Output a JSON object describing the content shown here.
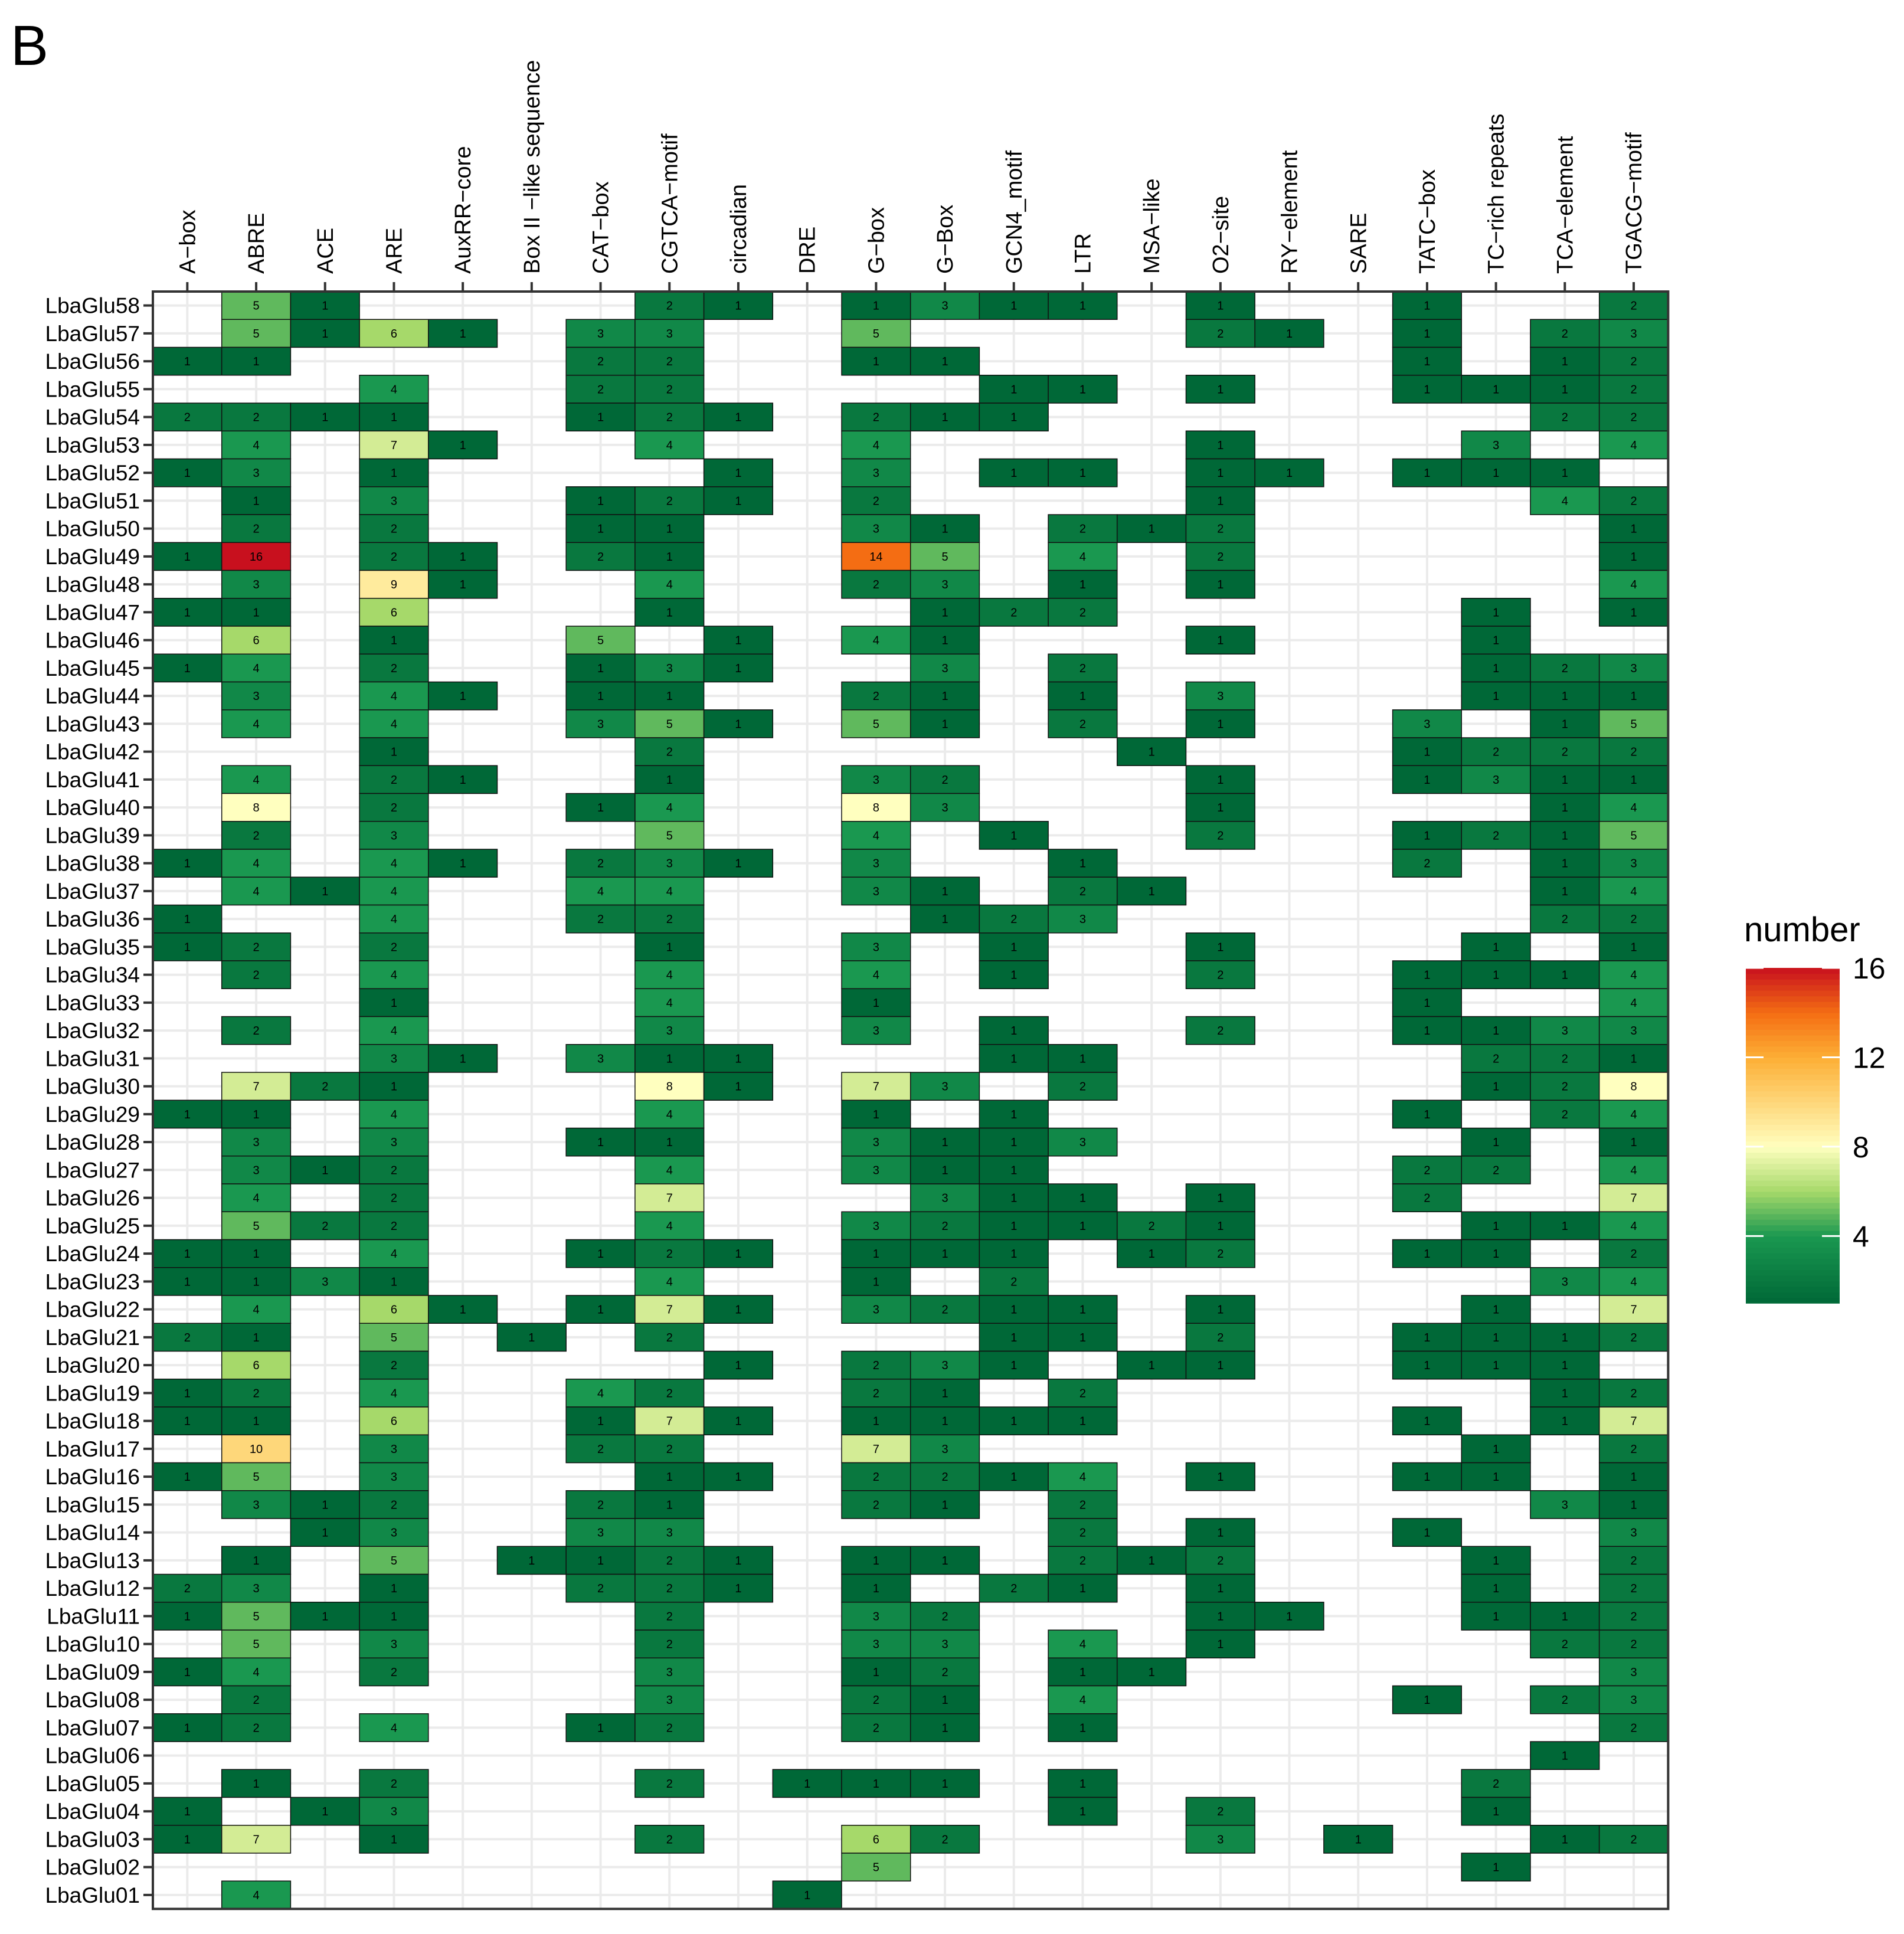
{
  "panel_label": "B",
  "chart_data": {
    "type": "heatmap",
    "title": "",
    "xlabel": "",
    "ylabel": "",
    "x_position": "top",
    "grid": true,
    "columns": [
      "A−box",
      "ABRE",
      "ACE",
      "ARE",
      "AuxRR−core",
      "Box II −like sequence",
      "CAT−box",
      "CGTCA−motif",
      "circadian",
      "DRE",
      "G−box",
      "G−Box",
      "GCN4_motif",
      "LTR",
      "MSA−like",
      "O2−site",
      "RY−element",
      "SARE",
      "TATC−box",
      "TC−rich repeats",
      "TCA−element",
      "TGACG−motif"
    ],
    "rows": [
      "LbaGlu58",
      "LbaGlu57",
      "LbaGlu56",
      "LbaGlu55",
      "LbaGlu54",
      "LbaGlu53",
      "LbaGlu52",
      "LbaGlu51",
      "LbaGlu50",
      "LbaGlu49",
      "LbaGlu48",
      "LbaGlu47",
      "LbaGlu46",
      "LbaGlu45",
      "LbaGlu44",
      "LbaGlu43",
      "LbaGlu42",
      "LbaGlu41",
      "LbaGlu40",
      "LbaGlu39",
      "LbaGlu38",
      "LbaGlu37",
      "LbaGlu36",
      "LbaGlu35",
      "LbaGlu34",
      "LbaGlu33",
      "LbaGlu32",
      "LbaGlu31",
      "LbaGlu30",
      "LbaGlu29",
      "LbaGlu28",
      "LbaGlu27",
      "LbaGlu26",
      "LbaGlu25",
      "LbaGlu24",
      "LbaGlu23",
      "LbaGlu22",
      "LbaGlu21",
      "LbaGlu20",
      "LbaGlu19",
      "LbaGlu18",
      "LbaGlu17",
      "LbaGlu16",
      "LbaGlu15",
      "LbaGlu14",
      "LbaGlu13",
      "LbaGlu12",
      "LbaGlu11",
      "LbaGlu10",
      "LbaGlu09",
      "LbaGlu08",
      "LbaGlu07",
      "LbaGlu06",
      "LbaGlu05",
      "LbaGlu04",
      "LbaGlu03",
      "LbaGlu02",
      "LbaGlu01"
    ],
    "values": [
      [
        null,
        5,
        1,
        null,
        null,
        null,
        null,
        2,
        1,
        null,
        1,
        3,
        1,
        1,
        null,
        1,
        null,
        null,
        1,
        null,
        null,
        2
      ],
      [
        null,
        5,
        1,
        6,
        1,
        null,
        3,
        3,
        null,
        null,
        5,
        null,
        null,
        null,
        null,
        2,
        1,
        null,
        1,
        null,
        2,
        3
      ],
      [
        1,
        1,
        null,
        null,
        null,
        null,
        2,
        2,
        null,
        null,
        1,
        1,
        null,
        null,
        null,
        null,
        null,
        null,
        1,
        null,
        1,
        2
      ],
      [
        null,
        null,
        null,
        4,
        null,
        null,
        2,
        2,
        null,
        null,
        null,
        null,
        1,
        1,
        null,
        1,
        null,
        null,
        1,
        1,
        1,
        2
      ],
      [
        2,
        2,
        1,
        1,
        null,
        null,
        1,
        2,
        1,
        null,
        2,
        1,
        1,
        null,
        null,
        null,
        null,
        null,
        null,
        null,
        2,
        2
      ],
      [
        null,
        4,
        null,
        7,
        1,
        null,
        null,
        4,
        null,
        null,
        4,
        null,
        null,
        null,
        null,
        1,
        null,
        null,
        null,
        3,
        null,
        4
      ],
      [
        1,
        3,
        null,
        1,
        null,
        null,
        null,
        null,
        1,
        null,
        3,
        null,
        1,
        1,
        null,
        1,
        1,
        null,
        1,
        1,
        1,
        null
      ],
      [
        null,
        1,
        null,
        3,
        null,
        null,
        1,
        2,
        1,
        null,
        2,
        null,
        null,
        null,
        null,
        1,
        null,
        null,
        null,
        null,
        4,
        2
      ],
      [
        null,
        2,
        null,
        2,
        null,
        null,
        1,
        1,
        null,
        null,
        3,
        1,
        null,
        2,
        1,
        2,
        null,
        null,
        null,
        null,
        null,
        1
      ],
      [
        1,
        16,
        null,
        2,
        1,
        null,
        2,
        1,
        null,
        null,
        14,
        5,
        null,
        4,
        null,
        2,
        null,
        null,
        null,
        null,
        null,
        1
      ],
      [
        null,
        3,
        null,
        9,
        1,
        null,
        null,
        4,
        null,
        null,
        2,
        3,
        null,
        1,
        null,
        1,
        null,
        null,
        null,
        null,
        null,
        4
      ],
      [
        1,
        1,
        null,
        6,
        null,
        null,
        null,
        1,
        null,
        null,
        null,
        1,
        2,
        2,
        null,
        null,
        null,
        null,
        null,
        1,
        null,
        1
      ],
      [
        null,
        6,
        null,
        1,
        null,
        null,
        5,
        null,
        1,
        null,
        4,
        1,
        null,
        null,
        null,
        1,
        null,
        null,
        null,
        1,
        null,
        null
      ],
      [
        1,
        4,
        null,
        2,
        null,
        null,
        1,
        3,
        1,
        null,
        null,
        3,
        null,
        2,
        null,
        null,
        null,
        null,
        null,
        1,
        2,
        3
      ],
      [
        null,
        3,
        null,
        4,
        1,
        null,
        1,
        1,
        null,
        null,
        2,
        1,
        null,
        1,
        null,
        3,
        null,
        null,
        null,
        1,
        1,
        1
      ],
      [
        null,
        4,
        null,
        4,
        null,
        null,
        3,
        5,
        1,
        null,
        5,
        1,
        null,
        2,
        null,
        1,
        null,
        null,
        3,
        null,
        1,
        5
      ],
      [
        null,
        null,
        null,
        1,
        null,
        null,
        null,
        2,
        null,
        null,
        null,
        null,
        null,
        null,
        1,
        null,
        null,
        null,
        1,
        2,
        2,
        2
      ],
      [
        null,
        4,
        null,
        2,
        1,
        null,
        null,
        1,
        null,
        null,
        3,
        2,
        null,
        null,
        null,
        1,
        null,
        null,
        1,
        3,
        1,
        1
      ],
      [
        null,
        8,
        null,
        2,
        null,
        null,
        1,
        4,
        null,
        null,
        8,
        3,
        null,
        null,
        null,
        1,
        null,
        null,
        null,
        null,
        1,
        4
      ],
      [
        null,
        2,
        null,
        3,
        null,
        null,
        null,
        5,
        null,
        null,
        4,
        null,
        1,
        null,
        null,
        2,
        null,
        null,
        1,
        2,
        1,
        5
      ],
      [
        1,
        4,
        null,
        4,
        1,
        null,
        2,
        3,
        1,
        null,
        3,
        null,
        null,
        1,
        null,
        null,
        null,
        null,
        2,
        null,
        1,
        3
      ],
      [
        null,
        4,
        1,
        4,
        null,
        null,
        4,
        4,
        null,
        null,
        3,
        1,
        null,
        2,
        1,
        null,
        null,
        null,
        null,
        null,
        1,
        4
      ],
      [
        1,
        null,
        null,
        4,
        null,
        null,
        2,
        2,
        null,
        null,
        null,
        1,
        2,
        3,
        null,
        null,
        null,
        null,
        null,
        null,
        2,
        2
      ],
      [
        1,
        2,
        null,
        2,
        null,
        null,
        null,
        1,
        null,
        null,
        3,
        null,
        1,
        null,
        null,
        1,
        null,
        null,
        null,
        1,
        null,
        1
      ],
      [
        null,
        2,
        null,
        4,
        null,
        null,
        null,
        4,
        null,
        null,
        4,
        null,
        1,
        null,
        null,
        2,
        null,
        null,
        1,
        1,
        1,
        4
      ],
      [
        null,
        null,
        null,
        1,
        null,
        null,
        null,
        4,
        null,
        null,
        1,
        null,
        null,
        null,
        null,
        null,
        null,
        null,
        1,
        null,
        null,
        4
      ],
      [
        null,
        2,
        null,
        4,
        null,
        null,
        null,
        3,
        null,
        null,
        3,
        null,
        1,
        null,
        null,
        2,
        null,
        null,
        1,
        1,
        3,
        3
      ],
      [
        null,
        null,
        null,
        3,
        1,
        null,
        3,
        1,
        1,
        null,
        null,
        null,
        1,
        1,
        null,
        null,
        null,
        null,
        null,
        2,
        2,
        1
      ],
      [
        null,
        7,
        2,
        1,
        null,
        null,
        null,
        8,
        1,
        null,
        7,
        3,
        null,
        2,
        null,
        null,
        null,
        null,
        null,
        1,
        2,
        8
      ],
      [
        1,
        1,
        null,
        4,
        null,
        null,
        null,
        4,
        null,
        null,
        1,
        null,
        1,
        null,
        null,
        null,
        null,
        null,
        1,
        null,
        2,
        4
      ],
      [
        null,
        3,
        null,
        3,
        null,
        null,
        1,
        1,
        null,
        null,
        3,
        1,
        1,
        3,
        null,
        null,
        null,
        null,
        null,
        1,
        null,
        1
      ],
      [
        null,
        3,
        1,
        2,
        null,
        null,
        null,
        4,
        null,
        null,
        3,
        1,
        1,
        null,
        null,
        null,
        null,
        null,
        2,
        2,
        null,
        4
      ],
      [
        null,
        4,
        null,
        2,
        null,
        null,
        null,
        7,
        null,
        null,
        null,
        3,
        1,
        1,
        null,
        1,
        null,
        null,
        2,
        null,
        null,
        7
      ],
      [
        null,
        5,
        2,
        2,
        null,
        null,
        null,
        4,
        null,
        null,
        3,
        2,
        1,
        1,
        2,
        1,
        null,
        null,
        null,
        1,
        1,
        4
      ],
      [
        1,
        1,
        null,
        4,
        null,
        null,
        1,
        2,
        1,
        null,
        1,
        1,
        1,
        null,
        1,
        2,
        null,
        null,
        1,
        1,
        null,
        2
      ],
      [
        1,
        1,
        3,
        1,
        null,
        null,
        null,
        4,
        null,
        null,
        1,
        null,
        2,
        null,
        null,
        null,
        null,
        null,
        null,
        null,
        3,
        4
      ],
      [
        null,
        4,
        null,
        6,
        1,
        null,
        1,
        7,
        1,
        null,
        3,
        2,
        1,
        1,
        null,
        1,
        null,
        null,
        null,
        1,
        null,
        7
      ],
      [
        2,
        1,
        null,
        5,
        null,
        1,
        null,
        2,
        null,
        null,
        null,
        null,
        1,
        1,
        null,
        2,
        null,
        null,
        1,
        1,
        1,
        2
      ],
      [
        null,
        6,
        null,
        2,
        null,
        null,
        null,
        null,
        1,
        null,
        2,
        3,
        1,
        null,
        1,
        1,
        null,
        null,
        1,
        1,
        1,
        null
      ],
      [
        1,
        2,
        null,
        4,
        null,
        null,
        4,
        2,
        null,
        null,
        2,
        1,
        null,
        2,
        null,
        null,
        null,
        null,
        null,
        null,
        1,
        2
      ],
      [
        1,
        1,
        null,
        6,
        null,
        null,
        1,
        7,
        1,
        null,
        1,
        1,
        1,
        1,
        null,
        null,
        null,
        null,
        1,
        null,
        1,
        7
      ],
      [
        null,
        10,
        null,
        3,
        null,
        null,
        2,
        2,
        null,
        null,
        7,
        3,
        null,
        null,
        null,
        null,
        null,
        null,
        null,
        1,
        null,
        2
      ],
      [
        1,
        5,
        null,
        3,
        null,
        null,
        null,
        1,
        1,
        null,
        2,
        2,
        1,
        4,
        null,
        1,
        null,
        null,
        1,
        1,
        null,
        1
      ],
      [
        null,
        3,
        1,
        2,
        null,
        null,
        2,
        1,
        null,
        null,
        2,
        1,
        null,
        2,
        null,
        null,
        null,
        null,
        null,
        null,
        3,
        1
      ],
      [
        null,
        null,
        1,
        3,
        null,
        null,
        3,
        3,
        null,
        null,
        null,
        null,
        null,
        2,
        null,
        1,
        null,
        null,
        1,
        null,
        null,
        3
      ],
      [
        null,
        1,
        null,
        5,
        null,
        1,
        1,
        2,
        1,
        null,
        1,
        1,
        null,
        2,
        1,
        2,
        null,
        null,
        null,
        1,
        null,
        2
      ],
      [
        2,
        3,
        null,
        1,
        null,
        null,
        2,
        2,
        1,
        null,
        1,
        null,
        2,
        1,
        null,
        1,
        null,
        null,
        null,
        1,
        null,
        2
      ],
      [
        1,
        5,
        1,
        1,
        null,
        null,
        null,
        2,
        null,
        null,
        3,
        2,
        null,
        null,
        null,
        1,
        1,
        null,
        null,
        1,
        1,
        2
      ],
      [
        null,
        5,
        null,
        3,
        null,
        null,
        null,
        2,
        null,
        null,
        3,
        3,
        null,
        4,
        null,
        1,
        null,
        null,
        null,
        null,
        2,
        2
      ],
      [
        1,
        4,
        null,
        2,
        null,
        null,
        null,
        3,
        null,
        null,
        1,
        2,
        null,
        1,
        1,
        null,
        null,
        null,
        null,
        null,
        null,
        3
      ],
      [
        null,
        2,
        null,
        null,
        null,
        null,
        null,
        3,
        null,
        null,
        2,
        1,
        null,
        4,
        null,
        null,
        null,
        null,
        1,
        null,
        2,
        3
      ],
      [
        1,
        2,
        null,
        4,
        null,
        null,
        1,
        2,
        null,
        null,
        2,
        1,
        null,
        1,
        null,
        null,
        null,
        null,
        null,
        null,
        null,
        2
      ],
      [
        null,
        null,
        null,
        null,
        null,
        null,
        null,
        null,
        null,
        null,
        null,
        null,
        null,
        null,
        null,
        null,
        null,
        null,
        null,
        null,
        1,
        null
      ],
      [
        null,
        1,
        null,
        2,
        null,
        null,
        null,
        2,
        null,
        1,
        1,
        1,
        null,
        1,
        null,
        null,
        null,
        null,
        null,
        2,
        null,
        null
      ],
      [
        1,
        null,
        1,
        3,
        null,
        null,
        null,
        null,
        null,
        null,
        null,
        null,
        null,
        1,
        null,
        2,
        null,
        null,
        null,
        1,
        null,
        null
      ],
      [
        1,
        7,
        null,
        1,
        null,
        null,
        null,
        2,
        null,
        null,
        6,
        2,
        null,
        null,
        null,
        3,
        null,
        1,
        null,
        null,
        1,
        2
      ],
      [
        null,
        null,
        null,
        null,
        null,
        null,
        null,
        null,
        null,
        null,
        5,
        null,
        null,
        null,
        null,
        null,
        null,
        null,
        null,
        1,
        null,
        null
      ],
      [
        null,
        4,
        null,
        null,
        null,
        null,
        null,
        null,
        null,
        1,
        null,
        null,
        null,
        null,
        null,
        null,
        null,
        null,
        null,
        null,
        null,
        null
      ]
    ],
    "color_scale": {
      "min": 1,
      "max": 16,
      "stops": [
        {
          "value": 1,
          "color": "#006837"
        },
        {
          "value": 4,
          "color": "#1a9850"
        },
        {
          "value": 6,
          "color": "#a6d96a"
        },
        {
          "value": 8,
          "color": "#ffffbf"
        },
        {
          "value": 12,
          "color": "#fdae35"
        },
        {
          "value": 14,
          "color": "#f46d13"
        },
        {
          "value": 16,
          "color": "#c8101e"
        }
      ]
    },
    "legend": {
      "title": "number",
      "position": "right",
      "ticks": [
        4,
        8,
        12,
        16
      ]
    }
  }
}
